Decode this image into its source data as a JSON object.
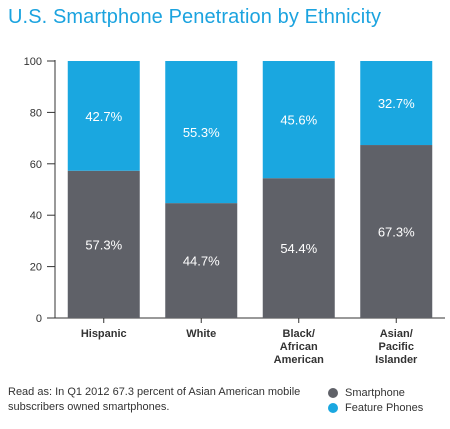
{
  "title": "U.S. Smartphone Penetration by Ethnicity",
  "footnote": "Read as: In Q1 2012 67.3 percent of Asian American mobile subscribers owned smartphones.",
  "colors": {
    "smartphone": "#5f6168",
    "feature_phones": "#1aa7e0",
    "title": "#1ba3df",
    "axis": "#333333",
    "value_label": "#ffffff"
  },
  "chart_data": {
    "type": "bar",
    "stacked": true,
    "title": "U.S. Smartphone Penetration by Ethnicity",
    "categories": [
      [
        "Hispanic"
      ],
      [
        "White"
      ],
      [
        "Black/",
        "African",
        "American"
      ],
      [
        "Asian/",
        "Pacific",
        "Islander"
      ]
    ],
    "series": [
      {
        "name": "Smartphone",
        "values": [
          57.3,
          44.7,
          54.4,
          67.3
        ],
        "labels": [
          "57.3%",
          "44.7%",
          "54.4%",
          "67.3%"
        ]
      },
      {
        "name": "Feature Phones",
        "values": [
          42.7,
          55.3,
          45.6,
          32.7
        ],
        "labels": [
          "42.7%",
          "55.3%",
          "45.6%",
          "32.7%"
        ]
      }
    ],
    "ylim": [
      0,
      100
    ],
    "yticks": [
      0,
      20,
      40,
      60,
      80,
      100
    ],
    "xlabel": "",
    "ylabel": "",
    "grid": false,
    "legend_position": "bottom-right"
  }
}
